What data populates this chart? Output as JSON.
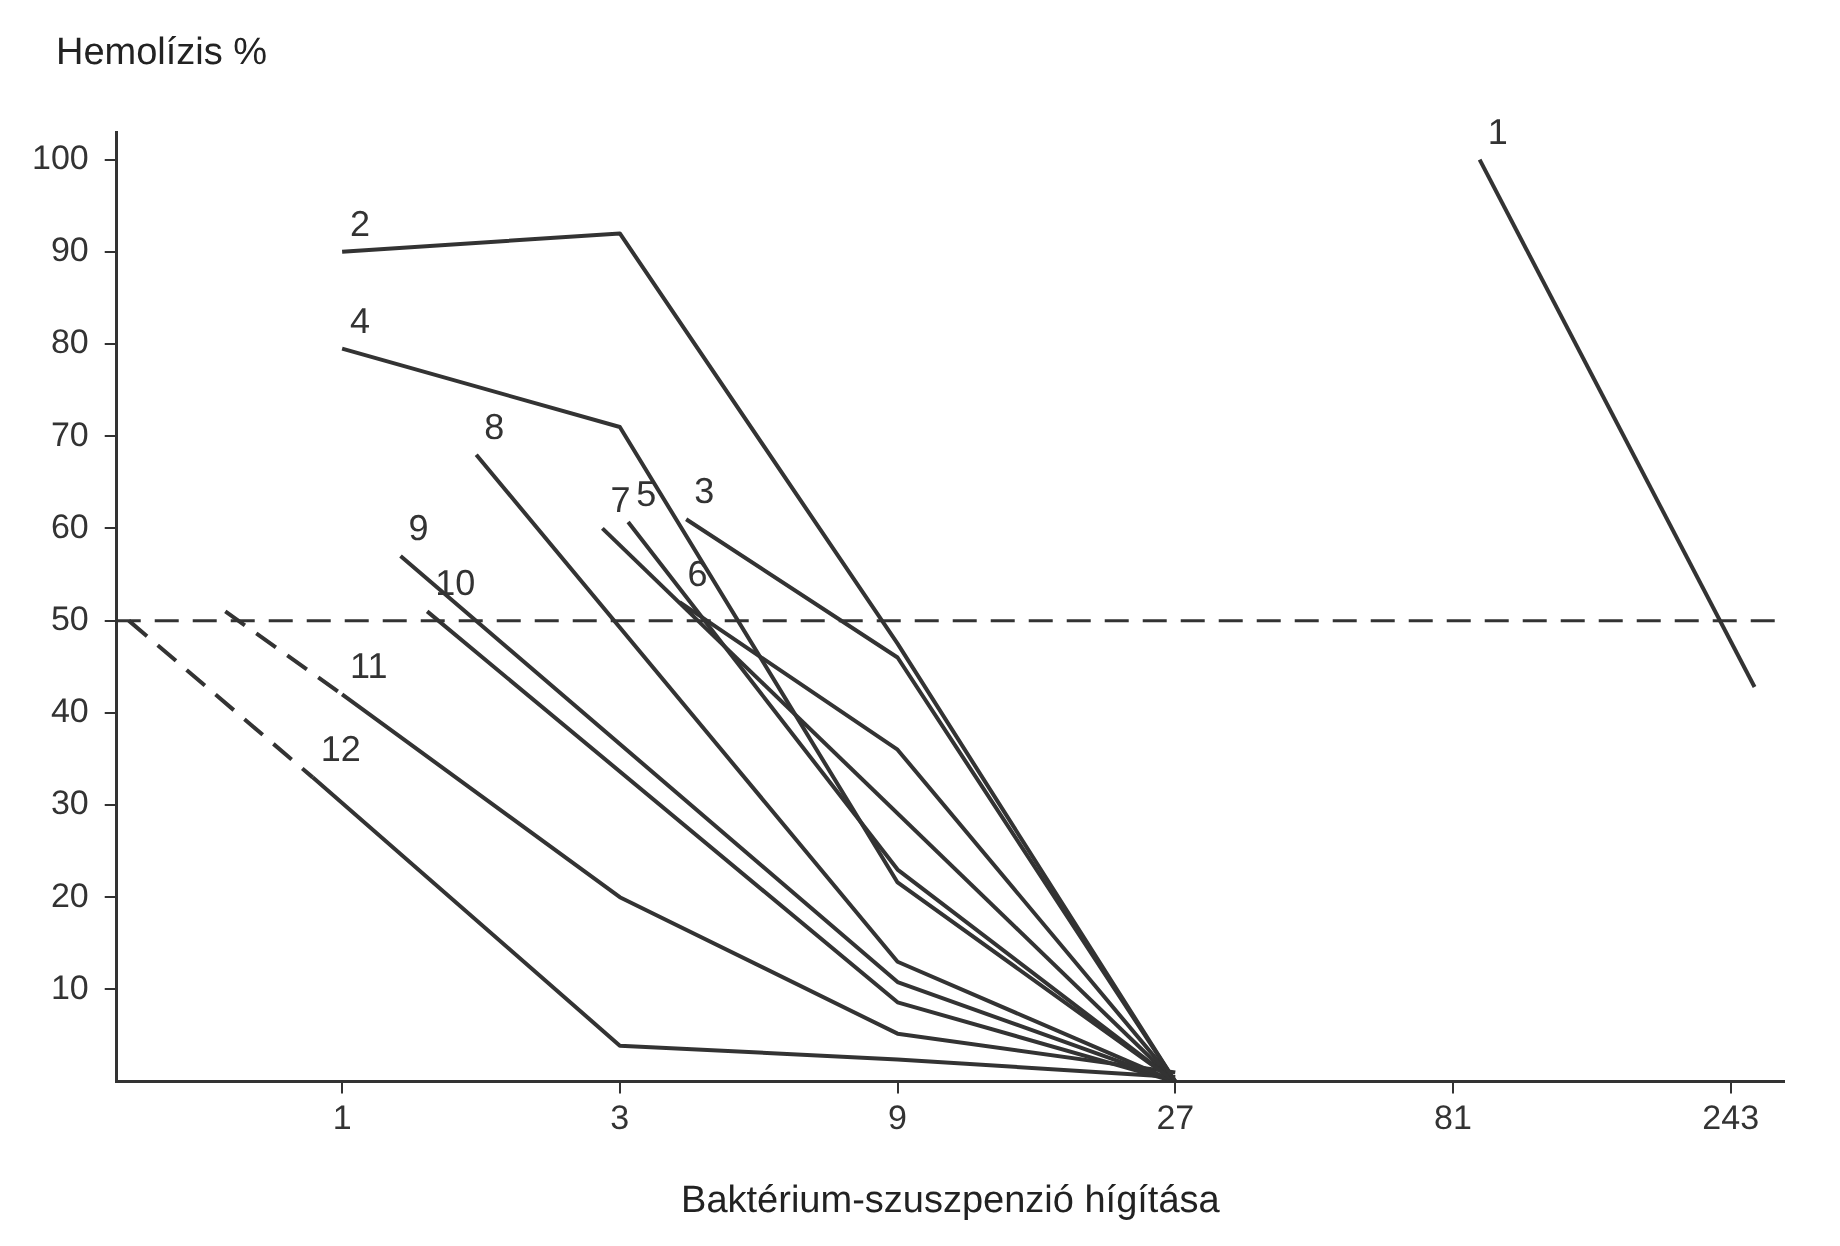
{
  "chart_data": {
    "type": "line",
    "xlabel": "Baktérium-szuszpenzió hígítása",
    "ylabel": "Hemolízis %",
    "log": "x",
    "xlim": [
      0.41,
      300
    ],
    "xticks": [
      1,
      3,
      9,
      27,
      81,
      243
    ],
    "ylim": [
      0,
      103
    ],
    "yticks": [
      10,
      20,
      30,
      40,
      50,
      60,
      70,
      80,
      90,
      100
    ],
    "grid": false,
    "legend": false,
    "marker": "none",
    "ref_lines": [
      {
        "axis": "y",
        "value": 50,
        "line_style": "dashed",
        "color": "#333333"
      }
    ],
    "series": [
      {
        "name": "1",
        "color": "#333333",
        "line_style": "solid",
        "x": [
          90,
          267
        ],
        "values": [
          100,
          42.8
        ]
      },
      {
        "name": "2",
        "color": "#333333",
        "line_style": "solid",
        "x": [
          1,
          3,
          9,
          27
        ],
        "values": [
          90,
          92,
          47.5,
          0
        ]
      },
      {
        "name": "3",
        "color": "#333333",
        "line_style": "solid",
        "x": [
          3.9,
          9,
          27
        ],
        "values": [
          61,
          46,
          0
        ]
      },
      {
        "name": "4",
        "color": "#333333",
        "line_style": "solid",
        "x": [
          1,
          3,
          9,
          27
        ],
        "values": [
          79.5,
          71,
          21.6,
          0
        ]
      },
      {
        "name": "5",
        "color": "#333333",
        "line_style": "solid",
        "x": [
          3.1,
          9,
          27
        ],
        "values": [
          60.7,
          23,
          0
        ]
      },
      {
        "name": "6",
        "color": "#333333",
        "line_style": "solid",
        "x": [
          3.8,
          9,
          27
        ],
        "values": [
          52,
          36,
          0
        ]
      },
      {
        "name": "7",
        "color": "#333333",
        "line_style": "solid",
        "x": [
          2.8,
          27
        ],
        "values": [
          60,
          0
        ]
      },
      {
        "name": "8",
        "color": "#333333",
        "line_style": "solid",
        "x": [
          1.7,
          9,
          27
        ],
        "values": [
          68,
          13,
          0
        ]
      },
      {
        "name": "9",
        "color": "#333333",
        "line_style": "solid",
        "x": [
          1.26,
          9,
          27
        ],
        "values": [
          57,
          10.8,
          0
        ]
      },
      {
        "name": "10",
        "color": "#333333",
        "line_style": "solid",
        "x": [
          1.4,
          9,
          27
        ],
        "values": [
          51,
          8.6,
          0
        ]
      },
      {
        "color": "#333333",
        "line_style": "dashed",
        "x": [
          0.63,
          1
        ],
        "values": [
          51,
          42
        ]
      },
      {
        "name": "11",
        "color": "#333333",
        "line_style": "solid",
        "x": [
          1,
          3,
          9,
          27
        ],
        "values": [
          42,
          20,
          5.2,
          1
        ]
      },
      {
        "color": "#333333",
        "line_style": "dashed",
        "x": [
          0.43,
          0.89
        ],
        "values": [
          50,
          33
        ]
      },
      {
        "name": "12",
        "color": "#333333",
        "line_style": "solid",
        "x": [
          0.89,
          3,
          9,
          27
        ],
        "values": [
          33,
          3.9,
          2.4,
          0.5
        ]
      }
    ]
  }
}
